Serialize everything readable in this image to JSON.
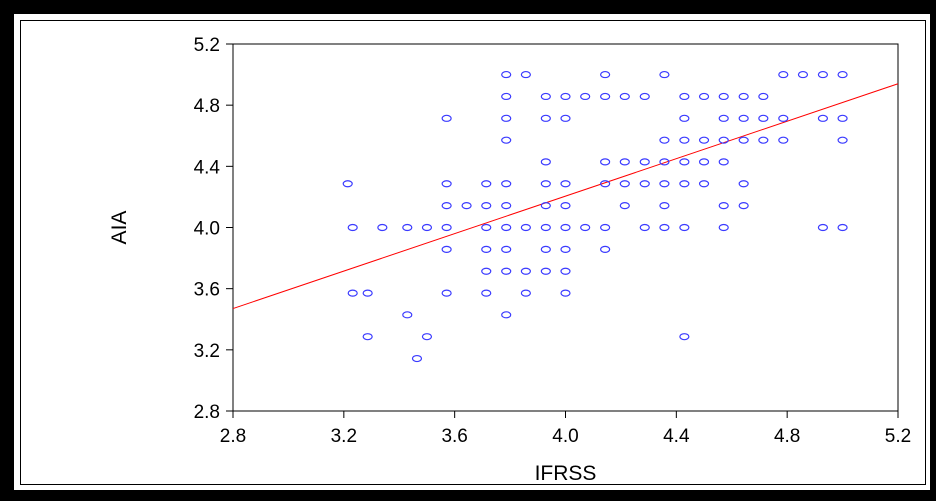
{
  "chart_data": {
    "type": "scatter",
    "title": "",
    "xlabel": "IFRSS",
    "ylabel": "AIA",
    "xlim": [
      2.8,
      5.2
    ],
    "ylim": [
      2.8,
      5.2
    ],
    "xticks": [
      "2.8",
      "3.2",
      "3.6",
      "4.0",
      "4.4",
      "4.8",
      "5.2"
    ],
    "yticks": [
      "2.8",
      "3.2",
      "3.6",
      "4.0",
      "4.4",
      "4.8",
      "5.2"
    ],
    "grid": false,
    "colors": {
      "points": "#3a3aff",
      "fit_line": "#ff0000",
      "frame": "#000000"
    },
    "fit_line": {
      "x": [
        2.8,
        5.2
      ],
      "y": [
        3.47,
        4.94
      ]
    },
    "points": [
      [
        3.786,
        5.0
      ],
      [
        3.857,
        5.0
      ],
      [
        4.143,
        5.0
      ],
      [
        4.357,
        5.0
      ],
      [
        4.786,
        5.0
      ],
      [
        4.857,
        5.0
      ],
      [
        4.929,
        5.0
      ],
      [
        5.0,
        5.0
      ],
      [
        3.786,
        4.857
      ],
      [
        3.929,
        4.857
      ],
      [
        4.0,
        4.857
      ],
      [
        4.071,
        4.857
      ],
      [
        4.143,
        4.857
      ],
      [
        4.214,
        4.857
      ],
      [
        4.286,
        4.857
      ],
      [
        4.429,
        4.857
      ],
      [
        4.5,
        4.857
      ],
      [
        4.571,
        4.857
      ],
      [
        4.643,
        4.857
      ],
      [
        4.714,
        4.857
      ],
      [
        3.571,
        4.714
      ],
      [
        3.786,
        4.714
      ],
      [
        3.929,
        4.714
      ],
      [
        4.0,
        4.714
      ],
      [
        4.429,
        4.714
      ],
      [
        4.571,
        4.714
      ],
      [
        4.643,
        4.714
      ],
      [
        4.714,
        4.714
      ],
      [
        4.786,
        4.714
      ],
      [
        4.929,
        4.714
      ],
      [
        5.0,
        4.714
      ],
      [
        3.786,
        4.571
      ],
      [
        4.357,
        4.571
      ],
      [
        4.429,
        4.571
      ],
      [
        4.5,
        4.571
      ],
      [
        4.571,
        4.571
      ],
      [
        4.643,
        4.571
      ],
      [
        4.714,
        4.571
      ],
      [
        4.786,
        4.571
      ],
      [
        5.0,
        4.571
      ],
      [
        3.929,
        4.429
      ],
      [
        4.143,
        4.429
      ],
      [
        4.214,
        4.429
      ],
      [
        4.286,
        4.429
      ],
      [
        4.357,
        4.429
      ],
      [
        4.429,
        4.429
      ],
      [
        4.5,
        4.429
      ],
      [
        4.571,
        4.429
      ],
      [
        3.214,
        4.286
      ],
      [
        3.571,
        4.286
      ],
      [
        3.714,
        4.286
      ],
      [
        3.786,
        4.286
      ],
      [
        3.929,
        4.286
      ],
      [
        4.0,
        4.286
      ],
      [
        4.143,
        4.286
      ],
      [
        4.214,
        4.286
      ],
      [
        4.286,
        4.286
      ],
      [
        4.357,
        4.286
      ],
      [
        4.429,
        4.286
      ],
      [
        4.5,
        4.286
      ],
      [
        4.643,
        4.286
      ],
      [
        3.571,
        4.143
      ],
      [
        3.643,
        4.143
      ],
      [
        3.714,
        4.143
      ],
      [
        3.786,
        4.143
      ],
      [
        3.929,
        4.143
      ],
      [
        4.0,
        4.143
      ],
      [
        4.214,
        4.143
      ],
      [
        4.357,
        4.143
      ],
      [
        4.571,
        4.143
      ],
      [
        4.643,
        4.143
      ],
      [
        3.232,
        4.0
      ],
      [
        3.339,
        4.0
      ],
      [
        3.429,
        4.0
      ],
      [
        3.5,
        4.0
      ],
      [
        3.571,
        4.0
      ],
      [
        3.714,
        4.0
      ],
      [
        3.786,
        4.0
      ],
      [
        3.857,
        4.0
      ],
      [
        3.929,
        4.0
      ],
      [
        4.0,
        4.0
      ],
      [
        4.071,
        4.0
      ],
      [
        4.143,
        4.0
      ],
      [
        4.286,
        4.0
      ],
      [
        4.357,
        4.0
      ],
      [
        4.429,
        4.0
      ],
      [
        4.571,
        4.0
      ],
      [
        4.929,
        4.0
      ],
      [
        5.0,
        4.0
      ],
      [
        3.571,
        3.857
      ],
      [
        3.714,
        3.857
      ],
      [
        3.786,
        3.857
      ],
      [
        3.929,
        3.857
      ],
      [
        4.0,
        3.857
      ],
      [
        4.143,
        3.857
      ],
      [
        3.714,
        3.714
      ],
      [
        3.786,
        3.714
      ],
      [
        3.857,
        3.714
      ],
      [
        3.929,
        3.714
      ],
      [
        4.0,
        3.714
      ],
      [
        3.232,
        3.571
      ],
      [
        3.286,
        3.571
      ],
      [
        3.571,
        3.571
      ],
      [
        3.714,
        3.571
      ],
      [
        3.857,
        3.571
      ],
      [
        4.0,
        3.571
      ],
      [
        3.429,
        3.429
      ],
      [
        3.786,
        3.429
      ],
      [
        3.286,
        3.286
      ],
      [
        3.5,
        3.286
      ],
      [
        4.429,
        3.286
      ],
      [
        3.464,
        3.143
      ]
    ]
  }
}
